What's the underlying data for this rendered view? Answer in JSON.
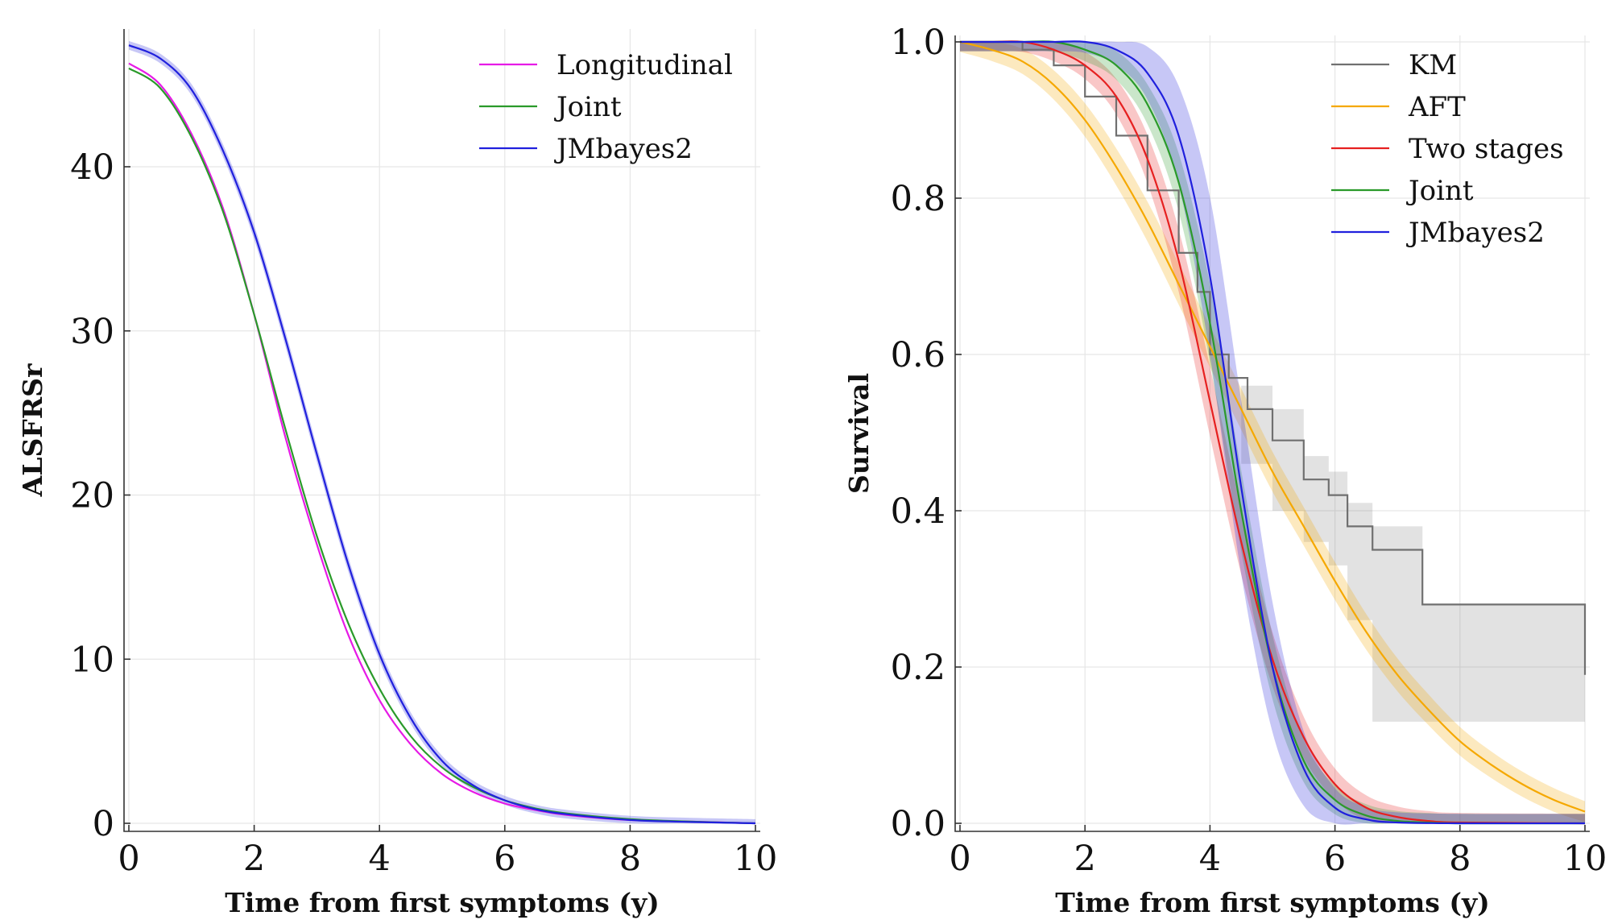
{
  "chart_data": [
    {
      "type": "line",
      "title": "",
      "xlabel": "Time from first symptoms (y)",
      "ylabel": "ALSFRSr",
      "xlim": [
        0,
        10
      ],
      "ylim": [
        0,
        48
      ],
      "xticks": [
        "0",
        "2",
        "4",
        "6",
        "8",
        "10"
      ],
      "yticks": [
        "0",
        "10",
        "20",
        "30",
        "40"
      ],
      "grid": true,
      "legend": "top-right",
      "series": [
        {
          "name": "Longitudinal",
          "color": "#e61ae6",
          "x": [
            0,
            0.5,
            1,
            1.5,
            2,
            2.5,
            3,
            3.5,
            4,
            4.5,
            5,
            5.5,
            6,
            6.5,
            7,
            8,
            9,
            10
          ],
          "y": [
            46.3,
            45.0,
            42.0,
            37.5,
            31.0,
            23.5,
            17.0,
            11.5,
            7.5,
            4.8,
            3.0,
            1.9,
            1.2,
            0.8,
            0.5,
            0.2,
            0.1,
            0.0
          ]
        },
        {
          "name": "Joint",
          "color": "#2a9a2a",
          "x": [
            0,
            0.5,
            1,
            1.5,
            2,
            2.5,
            3,
            3.5,
            4,
            4.5,
            5,
            5.5,
            6,
            6.5,
            7,
            8,
            9,
            10
          ],
          "y": [
            46.0,
            44.8,
            41.8,
            37.3,
            31.0,
            24.0,
            17.5,
            12.2,
            8.2,
            5.3,
            3.4,
            2.2,
            1.4,
            0.9,
            0.6,
            0.25,
            0.1,
            0.0
          ]
        },
        {
          "name": "JMbayes2",
          "color": "#2020dd",
          "band": true,
          "x": [
            0,
            0.5,
            1,
            1.5,
            2,
            2.5,
            3,
            3.5,
            4,
            4.5,
            5,
            5.5,
            6,
            6.5,
            7,
            8,
            9,
            10
          ],
          "y": [
            47.4,
            46.6,
            44.7,
            41.0,
            36.0,
            29.5,
            22.5,
            15.8,
            10.3,
            6.4,
            3.8,
            2.3,
            1.4,
            0.85,
            0.55,
            0.2,
            0.08,
            0.0
          ]
        }
      ]
    },
    {
      "type": "line",
      "title": "",
      "xlabel": "Time from first symptoms (y)",
      "ylabel": "Survival",
      "xlim": [
        0,
        10
      ],
      "ylim": [
        0,
        1
      ],
      "xticks": [
        "0",
        "2",
        "4",
        "6",
        "8",
        "10"
      ],
      "yticks": [
        "0.0",
        "0.2",
        "0.4",
        "0.6",
        "0.8",
        "1.0"
      ],
      "grid": true,
      "legend": "top-right",
      "series": [
        {
          "name": "KM",
          "color": "#707070",
          "step": true,
          "x": [
            0,
            0.5,
            1,
            1.5,
            2,
            2.5,
            3,
            3.5,
            3.8,
            4.0,
            4.3,
            4.6,
            5.0,
            5.5,
            5.9,
            6.2,
            6.6,
            7.4,
            10
          ],
          "y": [
            1.0,
            1.0,
            0.99,
            0.97,
            0.93,
            0.88,
            0.81,
            0.73,
            0.68,
            0.6,
            0.57,
            0.53,
            0.49,
            0.44,
            0.42,
            0.38,
            0.35,
            0.28,
            0.19
          ],
          "ci_x": [
            4.5,
            5.0,
            5.5,
            5.9,
            6.2,
            6.6,
            7.4,
            10
          ],
          "ci_lower": [
            0.5,
            0.46,
            0.4,
            0.36,
            0.33,
            0.26,
            0.13,
            0.13
          ],
          "ci_upper": [
            0.56,
            0.53,
            0.47,
            0.45,
            0.41,
            0.38,
            0.28,
            0.28
          ]
        },
        {
          "name": "AFT",
          "color": "#f5a800",
          "band": true,
          "x": [
            0,
            0.5,
            1,
            1.5,
            2,
            2.5,
            3,
            3.5,
            4,
            4.5,
            5,
            5.5,
            6,
            6.5,
            7,
            7.5,
            8,
            8.5,
            9,
            9.5,
            10
          ],
          "y": [
            1.0,
            0.99,
            0.975,
            0.945,
            0.9,
            0.84,
            0.77,
            0.69,
            0.61,
            0.53,
            0.45,
            0.38,
            0.31,
            0.245,
            0.19,
            0.145,
            0.105,
            0.075,
            0.05,
            0.03,
            0.015
          ]
        },
        {
          "name": "Two stages",
          "color": "#e62020",
          "band": true,
          "x": [
            0,
            0.5,
            1,
            1.5,
            2,
            2.5,
            3,
            3.5,
            4,
            4.5,
            5,
            5.5,
            6,
            6.5,
            7,
            7.5,
            8,
            10
          ],
          "y": [
            1.0,
            1.0,
            1.0,
            0.99,
            0.97,
            0.93,
            0.85,
            0.72,
            0.54,
            0.36,
            0.21,
            0.11,
            0.05,
            0.02,
            0.008,
            0.003,
            0.001,
            0.0
          ]
        },
        {
          "name": "Joint",
          "color": "#2a9a2a",
          "band": true,
          "x": [
            0,
            0.5,
            1,
            1.5,
            2,
            2.5,
            3,
            3.5,
            4,
            4.5,
            5,
            5.5,
            6,
            6.5,
            7,
            7.5,
            8,
            10
          ],
          "y": [
            1.0,
            1.0,
            1.0,
            1.0,
            0.99,
            0.97,
            0.92,
            0.82,
            0.64,
            0.4,
            0.2,
            0.08,
            0.03,
            0.01,
            0.003,
            0.001,
            0.0,
            0.0
          ]
        },
        {
          "name": "JMbayes2",
          "color": "#2020dd",
          "band": true,
          "x": [
            0,
            0.5,
            1,
            1.5,
            2,
            2.5,
            3,
            3.5,
            4,
            4.5,
            5,
            5.5,
            6,
            6.5,
            7,
            8,
            10
          ],
          "y": [
            1.0,
            1.0,
            1.0,
            1.0,
            1.0,
            0.99,
            0.96,
            0.88,
            0.7,
            0.43,
            0.2,
            0.07,
            0.02,
            0.005,
            0.001,
            0.0,
            0.0
          ]
        }
      ]
    }
  ]
}
